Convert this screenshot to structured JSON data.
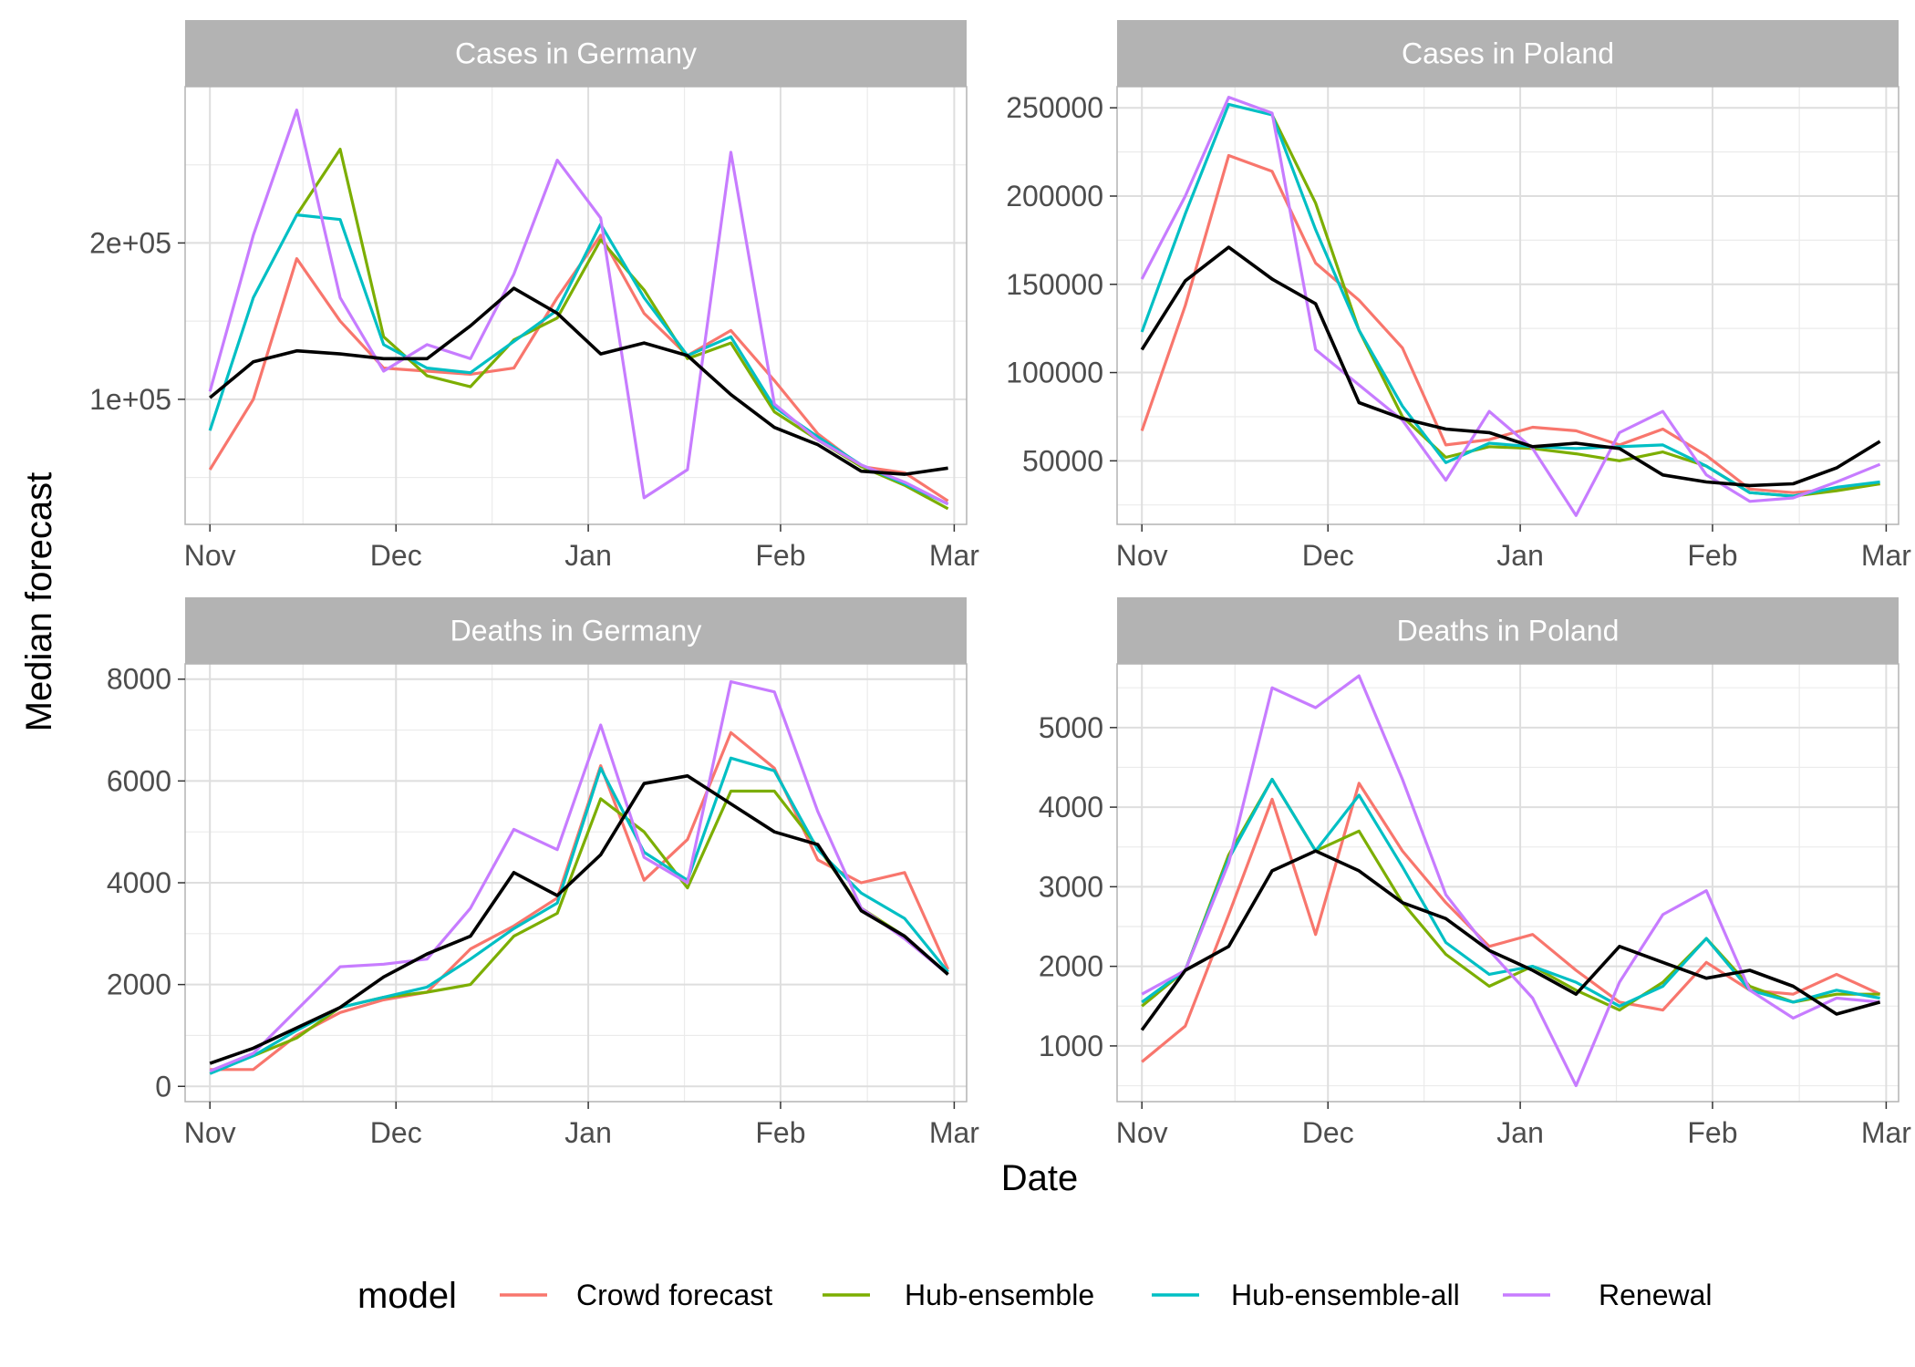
{
  "figure": {
    "xlabel": "Date",
    "ylabel": "Median forecast"
  },
  "legend": {
    "title": "model",
    "placement": "bottom",
    "items": [
      {
        "label": "Crowd forecast",
        "color": "#F8766D"
      },
      {
        "label": "Hub-ensemble",
        "color": "#7CAE00"
      },
      {
        "label": "Hub-ensemble-all",
        "color": "#00BFC4"
      },
      {
        "label": "Renewal",
        "color": "#C77CFF"
      }
    ]
  },
  "chart_data": [
    {
      "type": "line",
      "title": "Cases in Germany",
      "x_ticks": [
        "Nov",
        "Dec",
        "Jan",
        "Feb",
        "Mar"
      ],
      "xlim": [
        "2020-10-28",
        "2021-03-03"
      ],
      "y_ticks": [
        {
          "value": 100000,
          "label": "1e+05"
        },
        {
          "value": 200000,
          "label": "2e+05"
        }
      ],
      "ylim": [
        20000,
        300000
      ],
      "grid": true,
      "x": [
        "2020-11-01",
        "2020-11-08",
        "2020-11-15",
        "2020-11-22",
        "2020-11-29",
        "2020-12-06",
        "2020-12-13",
        "2020-12-20",
        "2020-12-27",
        "2021-01-03",
        "2021-01-10",
        "2021-01-17",
        "2021-01-24",
        "2021-01-31",
        "2021-02-07",
        "2021-02-14",
        "2021-02-21",
        "2021-02-28"
      ],
      "series": [
        {
          "name": "Crowd forecast",
          "color": "#F8766D",
          "values": [
            55000,
            100000,
            190000,
            150000,
            120000,
            118000,
            116000,
            120000,
            165000,
            205000,
            155000,
            128000,
            144000,
            112000,
            78000,
            57000,
            53000,
            35000
          ]
        },
        {
          "name": "Hub-ensemble",
          "color": "#7CAE00",
          "values": [
            null,
            null,
            218000,
            260000,
            140000,
            115000,
            108000,
            138000,
            152000,
            202000,
            170000,
            126000,
            136000,
            92000,
            74000,
            57000,
            45000,
            30000
          ]
        },
        {
          "name": "Hub-ensemble-all",
          "color": "#00BFC4",
          "values": [
            80000,
            165000,
            218000,
            215000,
            135000,
            120000,
            117000,
            137000,
            157000,
            212000,
            165000,
            128000,
            140000,
            95000,
            76000,
            58000,
            46000,
            33000
          ]
        },
        {
          "name": "Renewal",
          "color": "#C77CFF",
          "values": [
            105000,
            205000,
            285000,
            165000,
            118000,
            135000,
            126000,
            180000,
            253000,
            216000,
            37000,
            55000,
            258000,
            97000,
            74000,
            58000,
            47000,
            33000
          ]
        },
        {
          "name": "",
          "color": "#000000",
          "values": [
            101000,
            124000,
            131000,
            129000,
            126000,
            126000,
            147000,
            171000,
            155000,
            129000,
            136000,
            128000,
            103000,
            82000,
            71000,
            54000,
            52000,
            56000
          ]
        }
      ]
    },
    {
      "type": "line",
      "title": "Cases in Poland",
      "x_ticks": [
        "Nov",
        "Dec",
        "Jan",
        "Feb",
        "Mar"
      ],
      "xlim": [
        "2020-10-28",
        "2021-03-03"
      ],
      "y_ticks": [
        {
          "value": 50000,
          "label": "50000"
        },
        {
          "value": 100000,
          "label": "100000"
        },
        {
          "value": 150000,
          "label": "150000"
        },
        {
          "value": 200000,
          "label": "200000"
        },
        {
          "value": 250000,
          "label": "250000"
        }
      ],
      "ylim": [
        14000,
        262000
      ],
      "grid": true,
      "x": [
        "2020-11-01",
        "2020-11-08",
        "2020-11-15",
        "2020-11-22",
        "2020-11-29",
        "2020-12-06",
        "2020-12-13",
        "2020-12-20",
        "2020-12-27",
        "2021-01-03",
        "2021-01-10",
        "2021-01-17",
        "2021-01-24",
        "2021-01-31",
        "2021-02-07",
        "2021-02-14",
        "2021-02-21",
        "2021-02-28"
      ],
      "series": [
        {
          "name": "Crowd forecast",
          "color": "#F8766D",
          "values": [
            67000,
            138000,
            223000,
            214000,
            162000,
            141000,
            114000,
            59000,
            62000,
            69000,
            67000,
            59000,
            68000,
            53000,
            34000,
            32000,
            34000,
            37000
          ]
        },
        {
          "name": "Hub-ensemble",
          "color": "#7CAE00",
          "values": [
            null,
            null,
            null,
            246000,
            196000,
            124000,
            75000,
            52000,
            58000,
            57000,
            54000,
            50000,
            55000,
            47000,
            32000,
            30000,
            33000,
            37000
          ]
        },
        {
          "name": "Hub-ensemble-all",
          "color": "#00BFC4",
          "values": [
            123000,
            190000,
            252000,
            246000,
            181000,
            124000,
            81000,
            49000,
            60000,
            58000,
            57000,
            58000,
            59000,
            47000,
            32000,
            30000,
            35000,
            38000
          ]
        },
        {
          "name": "Renewal",
          "color": "#C77CFF",
          "values": [
            153000,
            200000,
            256000,
            247000,
            113000,
            93000,
            73000,
            39000,
            78000,
            57000,
            19000,
            66000,
            78000,
            42000,
            27000,
            29000,
            38000,
            48000
          ]
        },
        {
          "name": "",
          "color": "#000000",
          "values": [
            113000,
            152000,
            171000,
            153000,
            139000,
            83000,
            74000,
            68000,
            66000,
            58000,
            60000,
            57000,
            42000,
            38000,
            36000,
            37000,
            46000,
            61000
          ]
        }
      ]
    },
    {
      "type": "line",
      "title": "Deaths in Germany",
      "x_ticks": [
        "Nov",
        "Dec",
        "Jan",
        "Feb",
        "Mar"
      ],
      "xlim": [
        "2020-10-28",
        "2021-03-03"
      ],
      "y_ticks": [
        {
          "value": 0,
          "label": "0"
        },
        {
          "value": 2000,
          "label": "2000"
        },
        {
          "value": 4000,
          "label": "4000"
        },
        {
          "value": 6000,
          "label": "6000"
        },
        {
          "value": 8000,
          "label": "8000"
        }
      ],
      "ylim": [
        -300,
        8300
      ],
      "grid": true,
      "x": [
        "2020-11-01",
        "2020-11-08",
        "2020-11-15",
        "2020-11-22",
        "2020-11-29",
        "2020-12-06",
        "2020-12-13",
        "2020-12-20",
        "2020-12-27",
        "2021-01-03",
        "2021-01-10",
        "2021-01-17",
        "2021-01-24",
        "2021-01-31",
        "2021-02-07",
        "2021-02-14",
        "2021-02-21",
        "2021-02-28"
      ],
      "series": [
        {
          "name": "Crowd forecast",
          "color": "#F8766D",
          "values": [
            330,
            330,
            1000,
            1450,
            1700,
            1850,
            2700,
            3150,
            3700,
            6300,
            4050,
            4850,
            6950,
            6250,
            4450,
            4000,
            4200,
            2300
          ]
        },
        {
          "name": "Hub-ensemble",
          "color": "#7CAE00",
          "values": [
            null,
            600,
            950,
            1550,
            1750,
            1850,
            2000,
            2950,
            3400,
            5650,
            5000,
            3900,
            5800,
            5800,
            4700,
            3500,
            2950,
            2200
          ]
        },
        {
          "name": "Hub-ensemble-all",
          "color": "#00BFC4",
          "values": [
            250,
            600,
            1100,
            1550,
            1750,
            1950,
            2500,
            3100,
            3600,
            6250,
            4600,
            4050,
            6450,
            6200,
            4650,
            3800,
            3300,
            2250
          ]
        },
        {
          "name": "Renewal",
          "color": "#C77CFF",
          "values": [
            300,
            650,
            1500,
            2350,
            2400,
            2500,
            3500,
            5050,
            4650,
            7100,
            4500,
            4000,
            7950,
            7750,
            5400,
            3500,
            2900,
            2200
          ]
        },
        {
          "name": "",
          "color": "#000000",
          "values": [
            450,
            750,
            1150,
            1550,
            2150,
            2600,
            2950,
            4200,
            3750,
            4550,
            5950,
            6100,
            5550,
            5000,
            4750,
            3450,
            2950,
            2200
          ]
        }
      ]
    },
    {
      "type": "line",
      "title": "Deaths in Poland",
      "x_ticks": [
        "Nov",
        "Dec",
        "Jan",
        "Feb",
        "Mar"
      ],
      "xlim": [
        "2020-10-28",
        "2021-03-03"
      ],
      "y_ticks": [
        {
          "value": 1000,
          "label": "1000"
        },
        {
          "value": 2000,
          "label": "2000"
        },
        {
          "value": 3000,
          "label": "3000"
        },
        {
          "value": 4000,
          "label": "4000"
        },
        {
          "value": 5000,
          "label": "5000"
        }
      ],
      "ylim": [
        300,
        5800
      ],
      "grid": true,
      "x": [
        "2020-11-01",
        "2020-11-08",
        "2020-11-15",
        "2020-11-22",
        "2020-11-29",
        "2020-12-06",
        "2020-12-13",
        "2020-12-20",
        "2020-12-27",
        "2021-01-03",
        "2021-01-10",
        "2021-01-17",
        "2021-01-24",
        "2021-01-31",
        "2021-02-07",
        "2021-02-14",
        "2021-02-21",
        "2021-02-28"
      ],
      "series": [
        {
          "name": "Crowd forecast",
          "color": "#F8766D",
          "values": [
            800,
            1250,
            2650,
            4100,
            2400,
            4300,
            3450,
            2800,
            2250,
            2400,
            1950,
            1550,
            1450,
            2050,
            1700,
            1650,
            1900,
            1650
          ]
        },
        {
          "name": "Hub-ensemble",
          "color": "#7CAE00",
          "values": [
            1500,
            1950,
            3400,
            4350,
            3450,
            3700,
            2800,
            2150,
            1750,
            2000,
            1700,
            1450,
            1800,
            2350,
            1750,
            1550,
            1650,
            1650
          ]
        },
        {
          "name": "Hub-ensemble-all",
          "color": "#00BFC4",
          "values": [
            1550,
            1950,
            3350,
            4350,
            3450,
            4150,
            3250,
            2300,
            1900,
            2000,
            1800,
            1500,
            1750,
            2350,
            1700,
            1550,
            1700,
            1600
          ]
        },
        {
          "name": "Renewal",
          "color": "#C77CFF",
          "values": [
            1650,
            1950,
            3300,
            5500,
            5250,
            5650,
            4350,
            2900,
            2200,
            1600,
            500,
            1800,
            2650,
            2950,
            1700,
            1350,
            1600,
            1550
          ]
        },
        {
          "name": "",
          "color": "#000000",
          "values": [
            1200,
            1950,
            2250,
            3200,
            3450,
            3200,
            2800,
            2600,
            2200,
            1950,
            1650,
            2250,
            2050,
            1850,
            1950,
            1750,
            1400,
            1550
          ]
        }
      ]
    }
  ]
}
